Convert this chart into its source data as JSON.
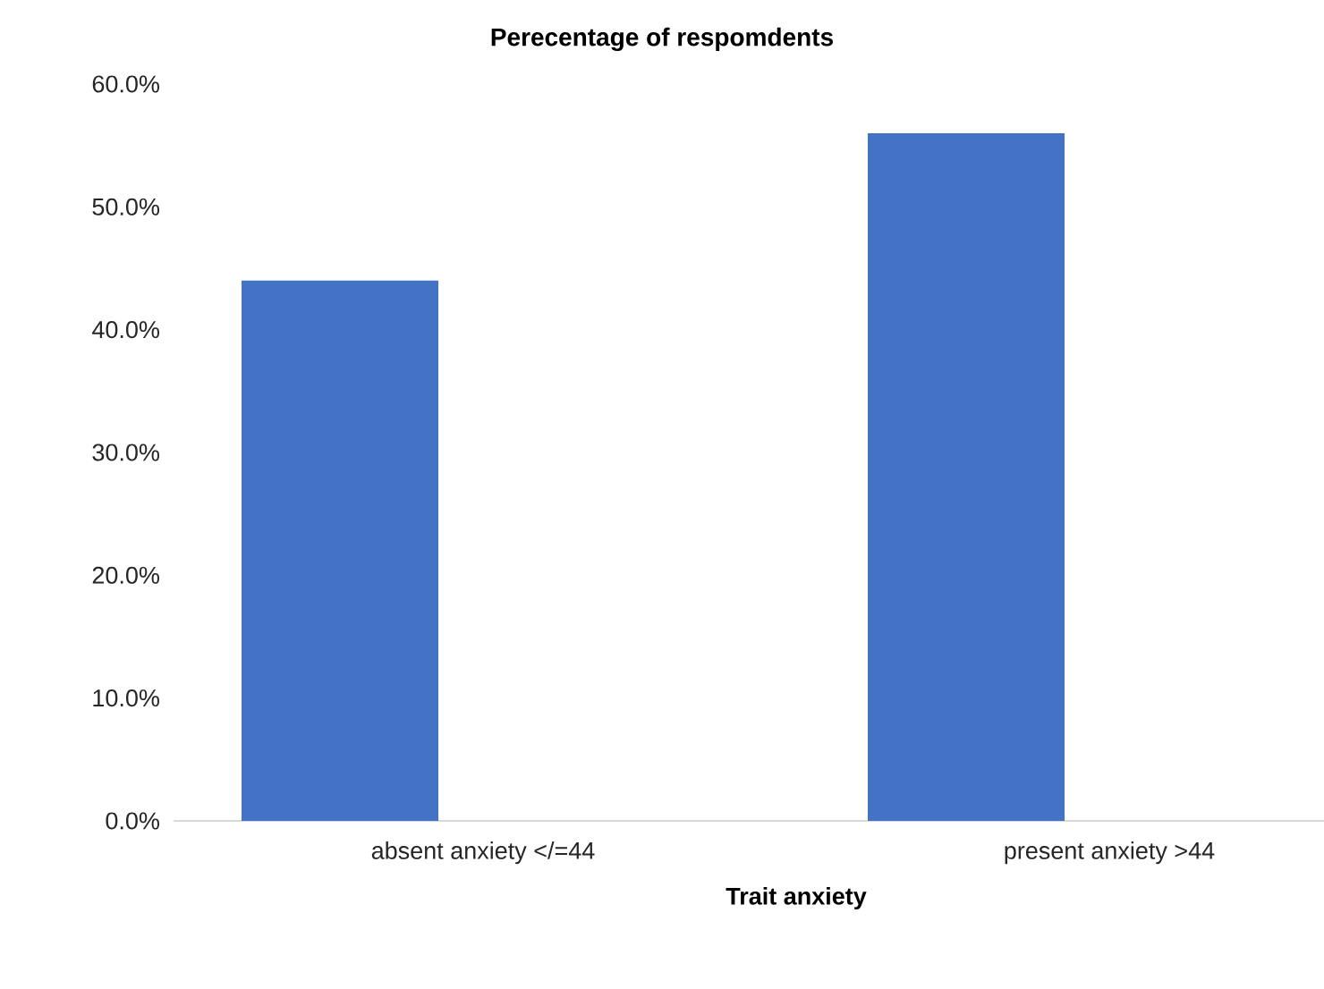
{
  "chart_data": {
    "type": "bar",
    "title": "Perecentage of respomdents",
    "xlabel": "Trait anxiety",
    "categories": [
      "absent anxiety </=44",
      "present anxiety >44"
    ],
    "values": [
      44.0,
      56.0
    ],
    "color": "#4472c4",
    "ylim": [
      0,
      60
    ],
    "yticks": [
      {
        "value": 0,
        "label": "0.0%"
      },
      {
        "value": 10,
        "label": "10.0%"
      },
      {
        "value": 20,
        "label": "20.0%"
      },
      {
        "value": 30,
        "label": "30.0%"
      },
      {
        "value": 40,
        "label": "40.0%"
      },
      {
        "value": 50,
        "label": "50.0%"
      },
      {
        "value": 60,
        "label": "60.0%"
      }
    ],
    "grid": false
  }
}
